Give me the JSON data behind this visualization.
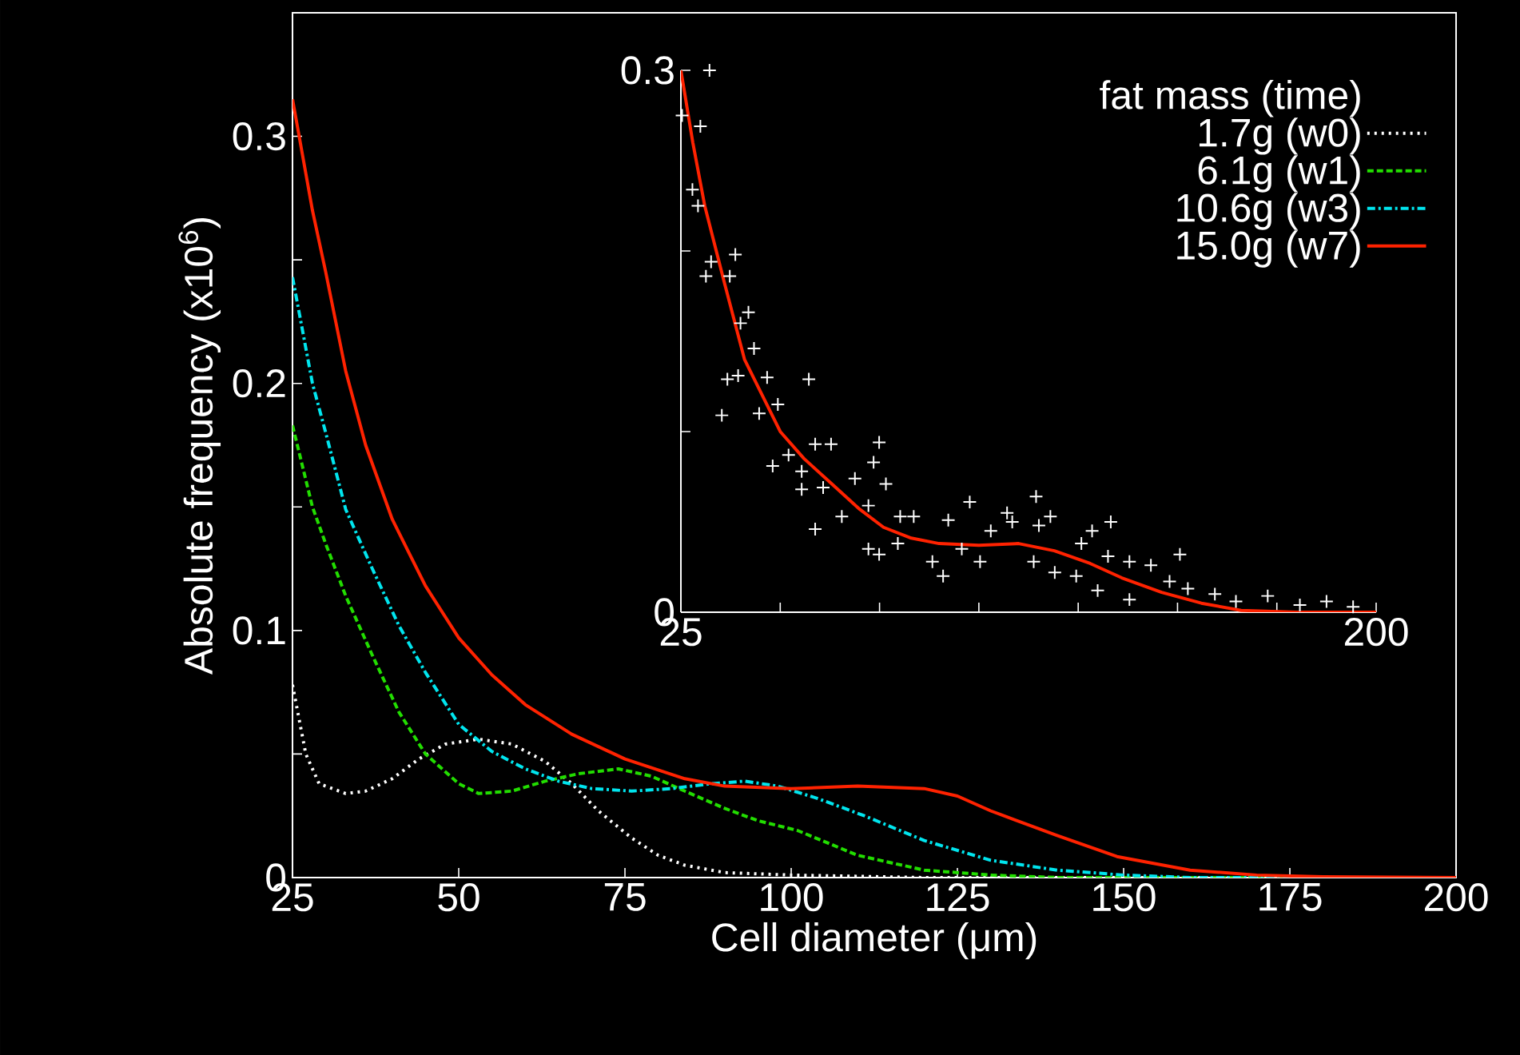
{
  "chart_data": [
    {
      "type": "line",
      "xlabel": "Cell diameter (μm)",
      "ylabel": "Absolute frequency (x10$^{6}$)",
      "legend": "top right",
      "legend_title": "fat mass (time)",
      "xlim": [
        25,
        200
      ],
      "ylim": [
        0,
        0.35
      ],
      "xticks": [
        25,
        50,
        75,
        100,
        125,
        150,
        175,
        200
      ],
      "yticks": [
        0,
        {
          "value": 0.05,
          "label": null
        },
        0.1,
        {
          "value": 0.15,
          "label": null
        },
        0.2,
        {
          "value": 0.25,
          "label": null
        },
        0.3
      ],
      "series": [
        {
          "name": "1.7g (w0)",
          "color": "#ffffff",
          "line_style": "dotted",
          "x": [
            25,
            27,
            29,
            33,
            36,
            40,
            44,
            48,
            53,
            58,
            63,
            67,
            71,
            76,
            80,
            84,
            90,
            100,
            120,
            200
          ],
          "values": [
            0.078,
            0.05,
            0.038,
            0.034,
            0.035,
            0.04,
            0.048,
            0.054,
            0.056,
            0.054,
            0.047,
            0.038,
            0.027,
            0.016,
            0.009,
            0.005,
            0.002,
            0.001,
            0,
            0
          ]
        },
        {
          "name": "6.1g (w1)",
          "color": "#22dd00",
          "line_style": "dashed",
          "x": [
            25,
            28,
            30,
            33,
            37,
            41,
            45,
            50,
            53,
            58,
            63,
            68,
            74,
            79,
            84,
            90,
            95,
            101,
            110,
            120,
            130,
            140,
            200
          ],
          "values": [
            0.183,
            0.15,
            0.135,
            0.114,
            0.09,
            0.067,
            0.05,
            0.038,
            0.034,
            0.035,
            0.039,
            0.042,
            0.044,
            0.041,
            0.035,
            0.028,
            0.023,
            0.019,
            0.009,
            0.003,
            0.001,
            0,
            0
          ]
        },
        {
          "name": "10.6g (w3)",
          "color": "#00e5ee",
          "line_style": "dashdot",
          "x": [
            25,
            28,
            30,
            33,
            37,
            41,
            45,
            50,
            55,
            60,
            65,
            70,
            76,
            82,
            88,
            93,
            98,
            104,
            111,
            120,
            130,
            140,
            150,
            160,
            200
          ],
          "values": [
            0.243,
            0.2,
            0.18,
            0.149,
            0.125,
            0.102,
            0.083,
            0.062,
            0.051,
            0.044,
            0.039,
            0.036,
            0.035,
            0.036,
            0.038,
            0.039,
            0.037,
            0.032,
            0.025,
            0.015,
            0.007,
            0.003,
            0.001,
            0,
            0
          ]
        },
        {
          "name": "15.0g (w7)",
          "color": "#ff2200",
          "line_style": "solid",
          "x": [
            25,
            28,
            30,
            33,
            36,
            40,
            45,
            50,
            55,
            60,
            67,
            75,
            84,
            90,
            100,
            110,
            120,
            125,
            130,
            140,
            149,
            160,
            170,
            180,
            200
          ],
          "values": [
            0.315,
            0.27,
            0.245,
            0.205,
            0.175,
            0.145,
            0.118,
            0.097,
            0.082,
            0.07,
            0.058,
            0.048,
            0.04,
            0.037,
            0.036,
            0.037,
            0.036,
            0.033,
            0.027,
            0.017,
            0.0085,
            0.003,
            0.001,
            0.0003,
            0
          ]
        }
      ]
    },
    {
      "type": "line",
      "xlim": [
        25,
        200
      ],
      "ylim": [
        0,
        0.3
      ],
      "xticks": [
        25,
        {
          "value": 50,
          "label": null
        },
        {
          "value": 75,
          "label": null
        },
        {
          "value": 100,
          "label": null
        },
        {
          "value": 125,
          "label": null
        },
        {
          "value": 150,
          "label": null
        },
        {
          "value": 175,
          "label": null
        },
        200
      ],
      "yticks": [
        0,
        {
          "value": 0.1,
          "label": null
        },
        {
          "value": 0.2,
          "label": null
        },
        0.3
      ],
      "series": [
        {
          "type": "scatter",
          "marker": "cross",
          "color": "#ffffff",
          "x": [
            32.2,
            25.3,
            29.9,
            27.9,
            29.3,
            38.7,
            32.6,
            31.3,
            37.3,
            42,
            40,
            43.4,
            36.7,
            39.4,
            46.7,
            57.2,
            35.3,
            44.7,
            49.4,
            48.1,
            52.1,
            55.4,
            58.8,
            62.8,
            74.9,
            73.5,
            55.4,
            60.8,
            68.8,
            76.6,
            58.8,
            65.5,
            72.2,
            80.2,
            83.6,
            72.2,
            74.9,
            79.6,
            92.3,
            97.7,
            88.3,
            91,
            95.7,
            100.3,
            103,
            107.1,
            108.4,
            114.4,
            115.1,
            118,
            113.8,
            119.1,
            124.5,
            128.5,
            133.2,
            125.8,
            129.9,
            132.5,
            137.9,
            143.3,
            150.6,
            137.9,
            148,
            152.6,
            159.4,
            164.7,
            172.7,
            180.8,
            187.5,
            194.2
          ],
          "values": [
            0.3,
            0.275,
            0.269,
            0.234,
            0.225,
            0.198,
            0.194,
            0.186,
            0.186,
            0.166,
            0.16,
            0.146,
            0.129,
            0.131,
            0.13,
            0.129,
            0.109,
            0.11,
            0.115,
            0.081,
            0.087,
            0.078,
            0.093,
            0.093,
            0.094,
            0.083,
            0.068,
            0.069,
            0.074,
            0.071,
            0.046,
            0.053,
            0.059,
            0.053,
            0.053,
            0.035,
            0.032,
            0.038,
            0.051,
            0.061,
            0.028,
            0.02,
            0.035,
            0.028,
            0.045,
            0.055,
            0.05,
            0.064,
            0.048,
            0.053,
            0.028,
            0.022,
            0.02,
            0.045,
            0.05,
            0.038,
            0.012,
            0.031,
            0.028,
            0.026,
            0.032,
            0.007,
            0.017,
            0.013,
            0.01,
            0.006,
            0.009,
            0.004,
            0.006,
            0.003
          ]
        },
        {
          "type": "line",
          "color": "#ff2200",
          "line_style": "solid",
          "x": [
            25,
            28,
            31,
            36,
            41,
            50,
            56,
            63,
            70,
            76,
            83,
            90,
            100,
            110,
            119,
            128,
            136,
            146,
            156,
            166,
            180,
            200
          ],
          "values": [
            0.3,
            0.26,
            0.225,
            0.182,
            0.14,
            0.1,
            0.085,
            0.071,
            0.057,
            0.047,
            0.041,
            0.038,
            0.037,
            0.038,
            0.034,
            0.027,
            0.019,
            0.011,
            0.005,
            0.001,
            0,
            0
          ]
        }
      ]
    }
  ]
}
